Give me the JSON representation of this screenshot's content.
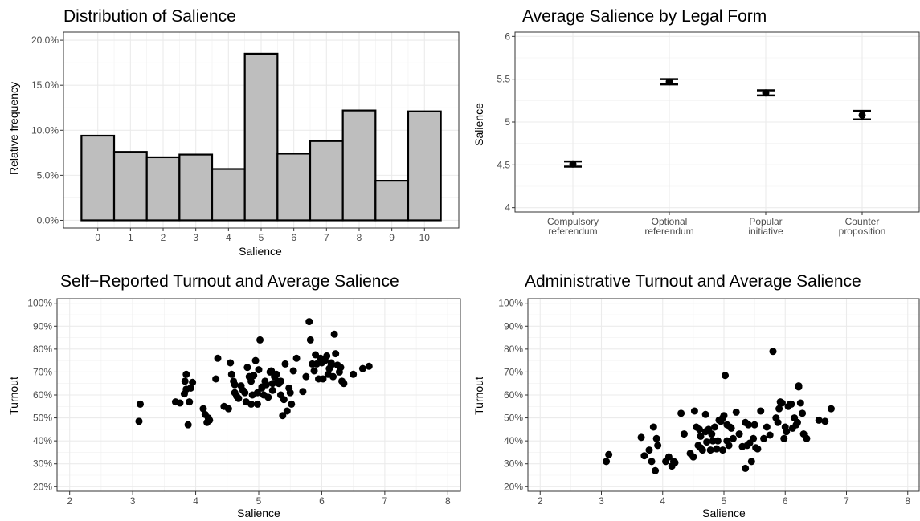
{
  "chart_data": [
    {
      "type": "bar",
      "title": "Distribution of Salience",
      "xlabel": "Salience",
      "ylabel": "Relative frequency",
      "categories": [
        "0",
        "1",
        "2",
        "3",
        "4",
        "5",
        "6",
        "7",
        "8",
        "9",
        "10"
      ],
      "values": [
        9.4,
        7.6,
        7.0,
        7.3,
        5.7,
        18.5,
        7.4,
        8.8,
        12.2,
        4.4,
        12.1
      ],
      "ylim": [
        0,
        20
      ],
      "yticks": [
        "0.0%",
        "5.0%",
        "10.0%",
        "15.0%",
        "20.0%"
      ],
      "bar_fill": "#bebebe",
      "bar_stroke": "#000000",
      "grid": true
    },
    {
      "type": "scatter",
      "title": "Average Salience by Legal Form",
      "xlabel": "",
      "ylabel": "Salience",
      "categories": [
        "Compulsory\nreferendum",
        "Optional\nreferendum",
        "Popular\ninitiative",
        "Counter\nproposition"
      ],
      "values": [
        4.51,
        5.47,
        5.34,
        5.08
      ],
      "error_low": [
        4.48,
        5.44,
        5.31,
        5.03
      ],
      "error_high": [
        4.54,
        5.5,
        5.37,
        5.13
      ],
      "ylim": [
        3.95,
        6.05
      ],
      "yticks": [
        "4",
        "4.5",
        "5",
        "5.5",
        "6"
      ],
      "grid": true
    },
    {
      "type": "scatter",
      "title": "Self−Reported Turnout and Average Salience",
      "xlabel": "Salience",
      "ylabel": "Turnout",
      "xlim": [
        1.8,
        8.2
      ],
      "ylim": [
        18,
        102
      ],
      "xticks": [
        "2",
        "3",
        "4",
        "5",
        "6",
        "7",
        "8"
      ],
      "yticks": [
        "20%",
        "30%",
        "40%",
        "50%",
        "60%",
        "70%",
        "80%",
        "90%",
        "100%"
      ],
      "x": [
        3.1,
        3.12,
        3.68,
        3.75,
        3.82,
        3.85,
        3.88,
        3.83,
        3.85,
        3.9,
        3.92,
        3.95,
        4.12,
        4.15,
        4.18,
        4.2,
        4.22,
        4.32,
        4.35,
        4.45,
        4.52,
        4.55,
        4.57,
        4.6,
        4.62,
        4.65,
        4.68,
        4.72,
        4.75,
        4.78,
        4.8,
        4.82,
        4.85,
        4.88,
        4.9,
        4.92,
        4.95,
        4.98,
        5.0,
        5.02,
        5.05,
        5.08,
        5.1,
        5.12,
        5.15,
        5.18,
        5.2,
        5.22,
        5.25,
        5.28,
        5.3,
        5.32,
        5.35,
        5.38,
        5.4,
        5.42,
        5.45,
        5.48,
        5.5,
        5.52,
        5.55,
        5.6,
        5.7,
        5.75,
        5.8,
        5.82,
        5.85,
        5.88,
        5.9,
        5.92,
        5.95,
        5.98,
        6.0,
        6.02,
        6.05,
        6.08,
        6.1,
        6.12,
        6.15,
        6.18,
        6.2,
        6.22,
        6.25,
        6.28,
        6.3,
        6.32,
        6.35,
        6.5,
        6.65,
        6.75,
        5.05,
        5.22,
        4.98,
        5.35,
        6.15,
        4.62,
        4.88
      ],
      "y": [
        48.5,
        56,
        57,
        56.5,
        60.5,
        62.5,
        47,
        66,
        69,
        57,
        63,
        65.5,
        54,
        51.5,
        48,
        50,
        49,
        67,
        76,
        55,
        54,
        74,
        69,
        66,
        61,
        59.5,
        58.5,
        64,
        62,
        61,
        57,
        72,
        68,
        56,
        60,
        68.5,
        75,
        61,
        71,
        84,
        63.5,
        60,
        66,
        64.5,
        59,
        70,
        70.5,
        62,
        68,
        69,
        66,
        65,
        66,
        51,
        58,
        73.5,
        53,
        63,
        61,
        56,
        70.5,
        76,
        61.5,
        68,
        92,
        84,
        73.5,
        70.5,
        77.5,
        73.5,
        67,
        76,
        74,
        67,
        75,
        77,
        69,
        71.5,
        74,
        68,
        86.5,
        78,
        73,
        70,
        72,
        66,
        65,
        69,
        71.5,
        72.5,
        63,
        65,
        56,
        60,
        73,
        64.5,
        66
      ],
      "grid": true
    },
    {
      "type": "scatter",
      "title": "Administrative Turnout and Average Salience",
      "xlabel": "Salience",
      "ylabel": "Turnout",
      "xlim": [
        1.8,
        8.2
      ],
      "ylim": [
        18,
        102
      ],
      "xticks": [
        "2",
        "3",
        "4",
        "5",
        "6",
        "7",
        "8"
      ],
      "yticks": [
        "20%",
        "30%",
        "40%",
        "50%",
        "60%",
        "70%",
        "80%",
        "90%",
        "100%"
      ],
      "x": [
        3.08,
        3.12,
        3.65,
        3.7,
        3.78,
        3.82,
        3.85,
        3.88,
        3.9,
        3.92,
        4.05,
        4.1,
        4.15,
        4.18,
        4.2,
        4.3,
        4.35,
        4.45,
        4.5,
        4.52,
        4.55,
        4.58,
        4.6,
        4.62,
        4.65,
        4.7,
        4.72,
        4.75,
        4.78,
        4.8,
        4.82,
        4.85,
        4.88,
        4.9,
        4.92,
        4.95,
        4.98,
        5.0,
        5.02,
        5.05,
        5.08,
        5.1,
        5.12,
        5.15,
        5.2,
        5.25,
        5.3,
        5.35,
        5.38,
        5.4,
        5.42,
        5.45,
        5.48,
        5.5,
        5.52,
        5.55,
        5.6,
        5.65,
        5.7,
        5.75,
        5.8,
        5.85,
        5.88,
        5.9,
        5.92,
        5.95,
        5.98,
        6.0,
        6.02,
        6.05,
        6.08,
        6.1,
        6.12,
        6.15,
        6.18,
        6.2,
        6.22,
        6.25,
        6.28,
        6.3,
        6.35,
        6.55,
        6.65,
        6.75,
        5.05,
        4.7,
        4.98,
        5.35,
        6.22,
        4.62
      ],
      "y": [
        31,
        34,
        41.5,
        33.5,
        36,
        31,
        46,
        27,
        41,
        38,
        31,
        33,
        29,
        31,
        30.5,
        52,
        43,
        34.5,
        33,
        53,
        46,
        38,
        45,
        42,
        36,
        51.5,
        39.5,
        45,
        36,
        43,
        40,
        46,
        36.5,
        40,
        49,
        48.5,
        36,
        51,
        68.5,
        40,
        38,
        46,
        45.5,
        41,
        52.5,
        43,
        37.5,
        28,
        38,
        47,
        39,
        31,
        41,
        47,
        37,
        36.5,
        53,
        41,
        46,
        42.5,
        79,
        50,
        48,
        54,
        57,
        56.5,
        41,
        46,
        44,
        55,
        56,
        56,
        45.5,
        50,
        47,
        48,
        64,
        56.5,
        52,
        43,
        41,
        49,
        48.5,
        54,
        47,
        44,
        50,
        48,
        63.5,
        37
      ],
      "grid": true
    }
  ]
}
